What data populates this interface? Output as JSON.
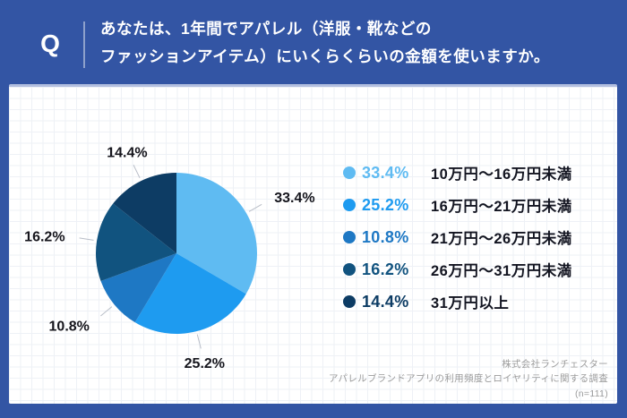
{
  "header": {
    "q_label": "Q",
    "question_line1": "あなたは、1年間でアパレル（洋服・靴などの",
    "question_line2": "ファッションアイテム）にいくらくらいの金額を使いますか。"
  },
  "chart_data": {
    "type": "pie",
    "title": "あなたは、1年間でアパレル（洋服・靴などのファッションアイテム）にいくらくらいの金額を使いますか。",
    "categories": [
      "10万円～16万円未満",
      "16万円～21万円未満",
      "21万円～26万円未満",
      "26万円～31万円未満",
      "31万円以上"
    ],
    "values": [
      33.4,
      25.2,
      10.8,
      16.2,
      14.4
    ],
    "labels": [
      "33.4%",
      "25.2%",
      "10.8%",
      "16.2%",
      "14.4%"
    ],
    "unit": "%",
    "colors": [
      "#5fbbf2",
      "#1e9bf0",
      "#1e78c4",
      "#11537f",
      "#0d3c64"
    ],
    "start_angle_deg": 0,
    "direction": "clockwise",
    "legend_position": "right",
    "n": 111
  },
  "legend": {
    "items": [
      {
        "percent": "33.4%",
        "label": "10万円～16万円未満",
        "color": "#5fbbf2"
      },
      {
        "percent": "25.2%",
        "label": "16万円～21万円未満",
        "color": "#1e9bf0"
      },
      {
        "percent": "10.8%",
        "label": "21万円～26万円未満",
        "color": "#1e78c4"
      },
      {
        "percent": "16.2%",
        "label": "26万円～31万円未満",
        "color": "#11537f"
      },
      {
        "percent": "14.4%",
        "label": "31万円以上",
        "color": "#0d3c64"
      }
    ]
  },
  "footer": {
    "source_line1": "株式会社ランチェスター",
    "source_line2": "アパレルブランドアプリの利用頻度とロイヤリティに関する調査",
    "source_line3": "(n=111)"
  },
  "colors": {
    "background": "#3355a4",
    "card": "#ffffff",
    "header_divider": "#8ea1cb",
    "card_top_border": "#b3bfdf",
    "pie_label_text": "#15151c",
    "legend_label_text": "#121420",
    "footer_text": "#9c9c9c",
    "leader_line": "#b9bec8"
  }
}
